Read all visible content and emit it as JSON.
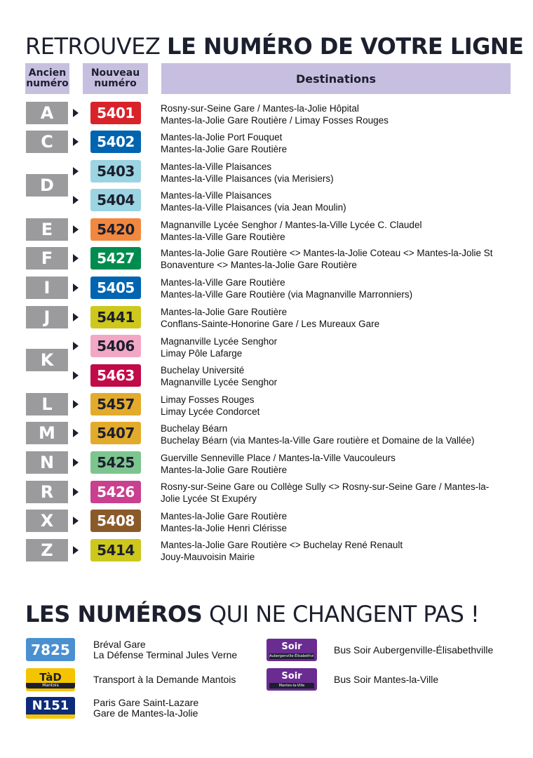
{
  "title": {
    "light": "RETROUVEZ ",
    "bold": "LE NUMÉRO DE VOTRE LIGNE"
  },
  "headers": {
    "old_line1": "Ancien",
    "old_line2": "numéro",
    "new_line1": "Nouveau",
    "new_line2": "numéro",
    "destinations": "Destinations"
  },
  "old_letters": [
    "A",
    "C",
    "D",
    "E",
    "F",
    "I",
    "J",
    "K",
    "L",
    "M",
    "N",
    "R",
    "X",
    "Z"
  ],
  "lines": [
    {
      "number": "5401",
      "bg": "#d8232a",
      "fg": "#ffffff",
      "dest": [
        "Rosny-sur-Seine Gare / Mantes-la-Jolie Hôpital",
        "Mantes-la-Jolie Gare Routière / Limay Fosses Rouges"
      ]
    },
    {
      "number": "5402",
      "bg": "#0064b0",
      "fg": "#ffffff",
      "dest": [
        "Mantes-la-Jolie Port Fouquet",
        "Mantes-la-Jolie Gare Routière"
      ]
    },
    {
      "number": "5403",
      "bg": "#9bd4e2",
      "fg": "#1c1f2e",
      "dest": [
        "Mantes-la-Ville Plaisances",
        "Mantes-la-Ville Plaisances (via Merisiers)"
      ]
    },
    {
      "number": "5404",
      "bg": "#9bd4e2",
      "fg": "#1c1f2e",
      "dest": [
        "Mantes-la-Ville Plaisances",
        "Mantes-la-Ville Plaisances (via Jean Moulin)"
      ]
    },
    {
      "number": "5420",
      "bg": "#f2883f",
      "fg": "#1c1f2e",
      "dest": [
        "Magnanville Lycée Senghor / Mantes-la-Ville Lycée C. Claudel",
        "Mantes-la-Ville Gare Routière"
      ]
    },
    {
      "number": "5427",
      "bg": "#008c4f",
      "fg": "#ffffff",
      "dest": [
        "Mantes-la-Jolie Gare Routière <> Mantes-la-Jolie Coteau <> Mantes-la-Jolie St Bonaventure <> Mantes-la-Jolie Gare Routière"
      ]
    },
    {
      "number": "5405",
      "bg": "#0064b0",
      "fg": "#ffffff",
      "dest": [
        "Mantes-la-Ville Gare Routière",
        "Mantes-la-Ville Gare Routière (via Magnanville Marronniers)"
      ]
    },
    {
      "number": "5441",
      "bg": "#cdc81b",
      "fg": "#1c1f2e",
      "dest": [
        "Mantes-la-Jolie Gare Routière",
        "Conflans-Sainte-Honorine Gare / Les Mureaux Gare"
      ]
    },
    {
      "number": "5406",
      "bg": "#f2a7c5",
      "fg": "#1c1f2e",
      "dest": [
        "Magnanville Lycée Senghor",
        "Limay Pôle Lafarge"
      ]
    },
    {
      "number": "5463",
      "bg": "#c10a48",
      "fg": "#ffffff",
      "dest": [
        "Buchelay Université",
        "Magnanville Lycée Senghor"
      ]
    },
    {
      "number": "5457",
      "bg": "#e3ab2b",
      "fg": "#1c1f2e",
      "dest": [
        "Limay Fosses Rouges",
        "Limay Lycée Condorcet"
      ]
    },
    {
      "number": "5407",
      "bg": "#e3ab2b",
      "fg": "#1c1f2e",
      "dest": [
        "Buchelay Béarn",
        "Buchelay Béarn (via Mantes-la-Ville Gare routière et Domaine de la Vallée)"
      ]
    },
    {
      "number": "5425",
      "bg": "#7dc58f",
      "fg": "#1c1f2e",
      "dest": [
        "Guerville Senneville Place / Mantes-la-Ville Vaucouleurs",
        "Mantes-la-Jolie Gare Routière"
      ]
    },
    {
      "number": "5426",
      "bg": "#c9408f",
      "fg": "#ffffff",
      "dest": [
        "Rosny-sur-Seine Gare ou Collège Sully <> Rosny-sur-Seine Gare / Mantes-la-Jolie Lycée St Exupéry"
      ]
    },
    {
      "number": "5408",
      "bg": "#8b5a2b",
      "fg": "#ffffff",
      "dest": [
        "Mantes-la-Jolie Gare Routière",
        "Mantes-la-Jolie Henri Clérisse"
      ]
    },
    {
      "number": "5414",
      "bg": "#cdc81b",
      "fg": "#1c1f2e",
      "dest": [
        "Mantes-la-Jolie Gare Routière <> Buchelay René Renault",
        "Jouy-Mauvoisin Mairie"
      ]
    }
  ],
  "title2": {
    "bold": "LES NUMÉROS",
    "light": " QUI NE CHANGENT PAS !"
  },
  "unchanged": {
    "b7825": {
      "label": "7825",
      "bg": "#4a90d0",
      "fg": "#ffffff",
      "dest": [
        "Bréval Gare",
        "La Défense Terminal Jules Verne"
      ]
    },
    "tad": {
      "label": "TàD",
      "sub": "Mantois",
      "bg": "#f5c400",
      "fg": "#1c1f2e",
      "dest": [
        "Transport à la Demande Mantois"
      ]
    },
    "n151": {
      "label": "N151",
      "bg": "#0b2a7a",
      "stripe": "#f5c400",
      "fg": "#ffffff",
      "dest": [
        "Paris Gare Saint-Lazare",
        "Gare de Mantes-la-Jolie"
      ]
    },
    "soir1": {
      "label": "Soir",
      "sub": "Aubergenville-Élisabethville",
      "bg": "#6a2c91",
      "fg": "#ffffff",
      "dest": [
        "Bus Soir Aubergenville-Élisabethville"
      ]
    },
    "soir2": {
      "label": "Soir",
      "sub": "Mantes-la-Ville",
      "bg": "#6a2c91",
      "fg": "#ffffff",
      "dest": [
        "Bus Soir Mantes-la-Ville"
      ]
    }
  }
}
